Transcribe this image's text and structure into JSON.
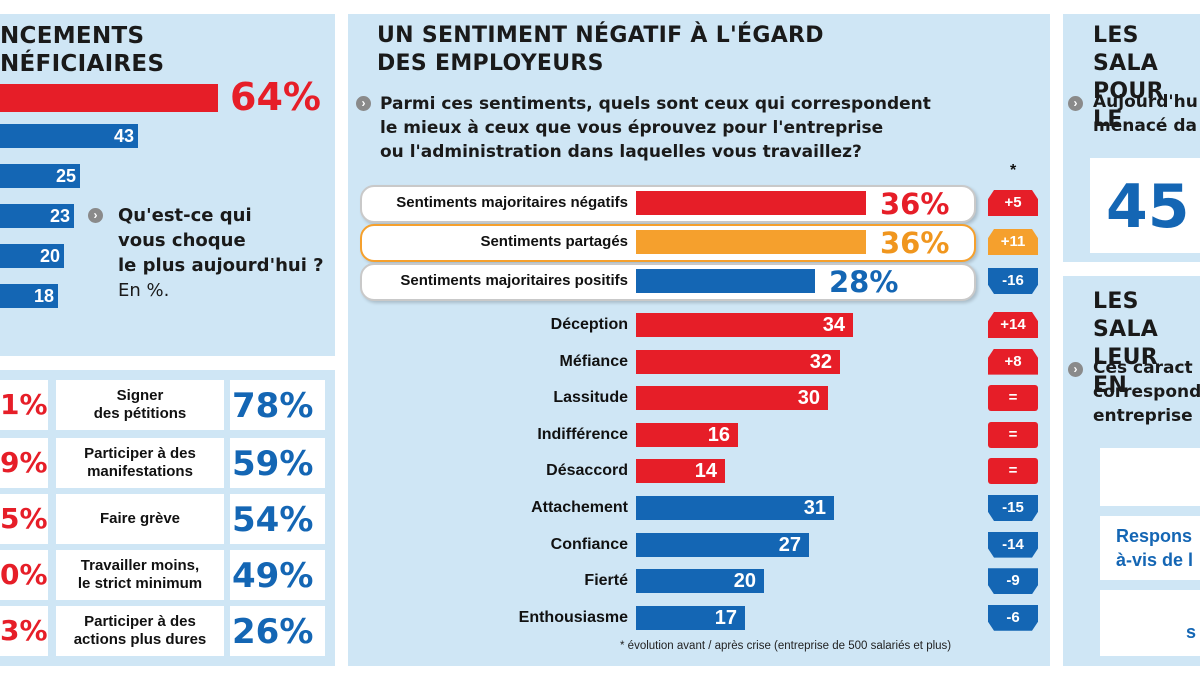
{
  "left_panel": {
    "title_lines": [
      "NCEMENTS",
      "NÉFICIAIRES"
    ],
    "top_value": "64%",
    "bars": [
      {
        "label": "43",
        "value": 43
      },
      {
        "label": "25",
        "value": 25
      },
      {
        "label": "23",
        "value": 23
      },
      {
        "label": "20",
        "value": 20
      },
      {
        "label": "18",
        "value": 18
      }
    ],
    "question_lines": [
      "Qu'est-ce qui",
      "vous choque",
      "le plus aujourd'hui ?",
      "En %."
    ]
  },
  "actions_table": {
    "rows": [
      {
        "left": "1%",
        "label": [
          "Signer",
          "des pétitions"
        ],
        "value": "78%"
      },
      {
        "left": "9%",
        "label": [
          "Participer à des",
          "manifestations"
        ],
        "value": "59%"
      },
      {
        "left": "5%",
        "label": [
          "Faire grève"
        ],
        "value": "54%"
      },
      {
        "left": "0%",
        "label": [
          "Travailler moins,",
          "le strict minimum"
        ],
        "value": "49%"
      },
      {
        "left": "3%",
        "label": [
          "Participer à des",
          "actions plus dures"
        ],
        "value": "26%"
      }
    ]
  },
  "center_panel": {
    "title_lines": [
      "UN SENTIMENT NÉGATIF À L'ÉGARD",
      "DES EMPLOYEURS"
    ],
    "question_lines": [
      "Parmi ces sentiments, quels sont ceux qui correspondent",
      "le mieux à ceux que vous éprouvez pour l'entreprise",
      "ou l'administration dans laquelles vous travaillez?"
    ],
    "star": "*",
    "footnote": "* évolution avant / après crise (entreprise de 500 salariés et plus)"
  },
  "chart_data": {
    "type": "bar",
    "summary": [
      {
        "label": "Sentiments majoritaires négatifs",
        "value": 36,
        "display": "36%",
        "color": "#e61e28",
        "change": "+5",
        "change_dir": "up"
      },
      {
        "label": "Sentiments partagés",
        "value": 36,
        "display": "36%",
        "color": "#f5a02d",
        "change": "+11",
        "change_dir": "up"
      },
      {
        "label": "Sentiments majoritaires positifs",
        "value": 28,
        "display": "28%",
        "color": "#1466b4",
        "change": "-16",
        "change_dir": "down"
      }
    ],
    "categories": [
      "Déception",
      "Méfiance",
      "Lassitude",
      "Indifférence",
      "Désaccord",
      "Attachement",
      "Confiance",
      "Fierté",
      "Enthousiasme"
    ],
    "values": [
      34,
      32,
      30,
      16,
      14,
      31,
      27,
      20,
      17
    ],
    "colors": [
      "#e61e28",
      "#e61e28",
      "#e61e28",
      "#e61e28",
      "#e61e28",
      "#1466b4",
      "#1466b4",
      "#1466b4",
      "#1466b4"
    ],
    "changes": [
      "+14",
      "+8",
      "=",
      "=",
      "=",
      "-15",
      "-14",
      "-9",
      "-6"
    ],
    "change_dirs": [
      "up",
      "up",
      "flat",
      "flat",
      "flat",
      "down",
      "down",
      "down",
      "down"
    ],
    "ylim": [
      0,
      36
    ]
  },
  "right_panel": {
    "title1_lines": [
      "LES SALA",
      "POUR LE"
    ],
    "question1_lines": [
      "Aujourd'hu",
      "menacé da"
    ],
    "big_value": "45",
    "title2_lines": [
      "LES SALA",
      "LEUR EN"
    ],
    "question2_lines": [
      "Ces caract",
      "correspond",
      "entreprise"
    ],
    "box2_lines": [
      "Respons",
      "à-vis de l"
    ],
    "box3_text": "s"
  }
}
